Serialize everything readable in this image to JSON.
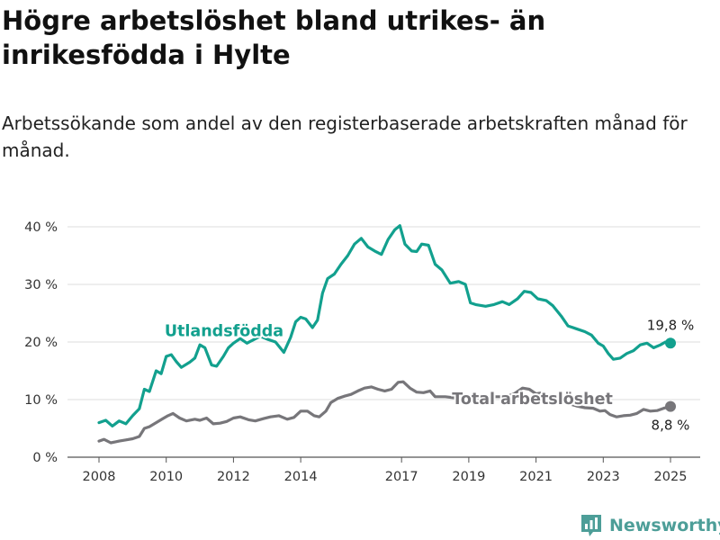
{
  "header": {
    "title": "Högre arbetslöshet bland utrikes- än inrikesfödda i Hylte",
    "subtitle": "Arbetssökande som andel av den registerbaserade arbetskraften månad för månad."
  },
  "brand": {
    "name": "Newsworthy",
    "icon": "newsworthy-chart-icon"
  },
  "colors": {
    "foreign": "#12a08e",
    "total": "#77767a",
    "axis": "#555555",
    "grid": "#dddddd"
  },
  "chart_data": {
    "type": "line",
    "title": "Högre arbetslöshet bland utrikes- än inrikesfödda i Hylte",
    "subtitle": "Arbetssökande som andel av den registerbaserade arbetskraften månad för månad.",
    "xlabel": "",
    "ylabel": "",
    "xlim": [
      2007.75,
      2025.9
    ],
    "ylim": [
      0,
      42
    ],
    "grid": true,
    "legend": "inline labels",
    "y_ticks": [
      {
        "value": 0,
        "label": "0 %"
      },
      {
        "value": 10,
        "label": "10 %"
      },
      {
        "value": 20,
        "label": "20 %"
      },
      {
        "value": 30,
        "label": "30 %"
      },
      {
        "value": 40,
        "label": "40 %"
      }
    ],
    "x_ticks": [
      {
        "value": 2008,
        "label": "2008"
      },
      {
        "value": 2010,
        "label": "2010"
      },
      {
        "value": 2012,
        "label": "2012"
      },
      {
        "value": 2014,
        "label": "2014"
      },
      {
        "value": 2017,
        "label": "2017"
      },
      {
        "value": 2019,
        "label": "2019"
      },
      {
        "value": 2021,
        "label": "2021"
      },
      {
        "value": 2023,
        "label": "2023"
      },
      {
        "value": 2025,
        "label": "2025"
      }
    ],
    "series": [
      {
        "name": "Utlandsfödda",
        "color": "#12a08e",
        "end_label": "19,8 %",
        "label_at": [
          2009.95,
          21
        ],
        "points": [
          [
            2008.0,
            6.0
          ],
          [
            2008.2,
            6.4
          ],
          [
            2008.4,
            5.4
          ],
          [
            2008.6,
            6.3
          ],
          [
            2008.8,
            5.8
          ],
          [
            2009.0,
            7.2
          ],
          [
            2009.2,
            8.4
          ],
          [
            2009.35,
            11.8
          ],
          [
            2009.5,
            11.4
          ],
          [
            2009.7,
            15.0
          ],
          [
            2009.85,
            14.5
          ],
          [
            2010.0,
            17.5
          ],
          [
            2010.15,
            17.8
          ],
          [
            2010.3,
            16.6
          ],
          [
            2010.45,
            15.6
          ],
          [
            2010.7,
            16.5
          ],
          [
            2010.85,
            17.2
          ],
          [
            2011.0,
            19.5
          ],
          [
            2011.15,
            19.0
          ],
          [
            2011.35,
            16.0
          ],
          [
            2011.5,
            15.8
          ],
          [
            2011.7,
            17.5
          ],
          [
            2011.85,
            19.0
          ],
          [
            2012.0,
            19.8
          ],
          [
            2012.2,
            20.6
          ],
          [
            2012.4,
            19.8
          ],
          [
            2012.6,
            20.4
          ],
          [
            2012.8,
            21.0
          ],
          [
            2013.0,
            20.5
          ],
          [
            2013.25,
            20.0
          ],
          [
            2013.5,
            18.2
          ],
          [
            2013.7,
            20.8
          ],
          [
            2013.85,
            23.5
          ],
          [
            2014.0,
            24.3
          ],
          [
            2014.15,
            24.0
          ],
          [
            2014.35,
            22.5
          ],
          [
            2014.5,
            23.8
          ],
          [
            2014.65,
            28.5
          ],
          [
            2014.8,
            31.0
          ],
          [
            2015.0,
            31.8
          ],
          [
            2015.2,
            33.5
          ],
          [
            2015.4,
            35.0
          ],
          [
            2015.6,
            37.0
          ],
          [
            2015.8,
            38.0
          ],
          [
            2016.0,
            36.5
          ],
          [
            2016.2,
            35.8
          ],
          [
            2016.4,
            35.2
          ],
          [
            2016.6,
            37.8
          ],
          [
            2016.8,
            39.5
          ],
          [
            2016.95,
            40.2
          ],
          [
            2017.1,
            37.0
          ],
          [
            2017.3,
            35.8
          ],
          [
            2017.45,
            35.7
          ],
          [
            2017.6,
            37.0
          ],
          [
            2017.8,
            36.8
          ],
          [
            2018.0,
            33.5
          ],
          [
            2018.2,
            32.5
          ],
          [
            2018.45,
            30.2
          ],
          [
            2018.7,
            30.5
          ],
          [
            2018.9,
            30.0
          ],
          [
            2019.05,
            26.8
          ],
          [
            2019.2,
            26.5
          ],
          [
            2019.5,
            26.2
          ],
          [
            2019.75,
            26.5
          ],
          [
            2020.0,
            27.0
          ],
          [
            2020.2,
            26.5
          ],
          [
            2020.45,
            27.5
          ],
          [
            2020.65,
            28.8
          ],
          [
            2020.85,
            28.6
          ],
          [
            2021.05,
            27.5
          ],
          [
            2021.3,
            27.2
          ],
          [
            2021.5,
            26.3
          ],
          [
            2021.75,
            24.5
          ],
          [
            2021.95,
            22.8
          ],
          [
            2022.2,
            22.3
          ],
          [
            2022.45,
            21.8
          ],
          [
            2022.65,
            21.2
          ],
          [
            2022.85,
            19.8
          ],
          [
            2023.0,
            19.3
          ],
          [
            2023.15,
            18.0
          ],
          [
            2023.3,
            17.0
          ],
          [
            2023.5,
            17.2
          ],
          [
            2023.7,
            18.0
          ],
          [
            2023.9,
            18.5
          ],
          [
            2024.1,
            19.5
          ],
          [
            2024.3,
            19.8
          ],
          [
            2024.5,
            19.0
          ],
          [
            2024.7,
            19.5
          ],
          [
            2024.85,
            20.0
          ],
          [
            2025.0,
            19.8
          ]
        ]
      },
      {
        "name": "Total arbetslöshet",
        "color": "#77767a",
        "end_label": "8,8 %",
        "label_at": [
          2018.5,
          9.2
        ],
        "points": [
          [
            2008.0,
            2.8
          ],
          [
            2008.15,
            3.1
          ],
          [
            2008.35,
            2.5
          ],
          [
            2008.6,
            2.8
          ],
          [
            2008.8,
            3.0
          ],
          [
            2009.0,
            3.2
          ],
          [
            2009.2,
            3.6
          ],
          [
            2009.35,
            5.0
          ],
          [
            2009.5,
            5.3
          ],
          [
            2009.7,
            6.0
          ],
          [
            2009.9,
            6.7
          ],
          [
            2010.05,
            7.2
          ],
          [
            2010.2,
            7.6
          ],
          [
            2010.4,
            6.8
          ],
          [
            2010.6,
            6.3
          ],
          [
            2010.85,
            6.6
          ],
          [
            2011.0,
            6.4
          ],
          [
            2011.2,
            6.8
          ],
          [
            2011.4,
            5.8
          ],
          [
            2011.6,
            5.9
          ],
          [
            2011.8,
            6.2
          ],
          [
            2012.0,
            6.8
          ],
          [
            2012.2,
            7.0
          ],
          [
            2012.45,
            6.5
          ],
          [
            2012.65,
            6.3
          ],
          [
            2012.9,
            6.7
          ],
          [
            2013.1,
            7.0
          ],
          [
            2013.35,
            7.2
          ],
          [
            2013.6,
            6.6
          ],
          [
            2013.8,
            6.9
          ],
          [
            2014.0,
            8.0
          ],
          [
            2014.2,
            8.0
          ],
          [
            2014.4,
            7.2
          ],
          [
            2014.55,
            7.0
          ],
          [
            2014.75,
            8.0
          ],
          [
            2014.9,
            9.5
          ],
          [
            2015.1,
            10.2
          ],
          [
            2015.3,
            10.6
          ],
          [
            2015.5,
            10.9
          ],
          [
            2015.7,
            11.5
          ],
          [
            2015.9,
            12.0
          ],
          [
            2016.1,
            12.2
          ],
          [
            2016.3,
            11.8
          ],
          [
            2016.5,
            11.5
          ],
          [
            2016.7,
            11.8
          ],
          [
            2016.9,
            13.0
          ],
          [
            2017.05,
            13.1
          ],
          [
            2017.25,
            12.0
          ],
          [
            2017.45,
            11.3
          ],
          [
            2017.65,
            11.2
          ],
          [
            2017.85,
            11.5
          ],
          [
            2018.0,
            10.5
          ],
          [
            2018.3,
            10.5
          ],
          [
            2018.6,
            10.3
          ],
          [
            2018.9,
            10.8
          ],
          [
            2019.2,
            10.3
          ],
          [
            2019.5,
            10.2
          ],
          [
            2019.8,
            10.5
          ],
          [
            2020.1,
            10.5
          ],
          [
            2020.35,
            11.0
          ],
          [
            2020.6,
            12.0
          ],
          [
            2020.8,
            11.8
          ],
          [
            2021.0,
            11.0
          ],
          [
            2021.2,
            11.2
          ],
          [
            2021.45,
            10.5
          ],
          [
            2021.7,
            10.0
          ],
          [
            2021.9,
            9.4
          ],
          [
            2022.2,
            8.9
          ],
          [
            2022.45,
            8.6
          ],
          [
            2022.7,
            8.5
          ],
          [
            2022.9,
            8.0
          ],
          [
            2023.05,
            8.1
          ],
          [
            2023.2,
            7.4
          ],
          [
            2023.4,
            7.0
          ],
          [
            2023.6,
            7.2
          ],
          [
            2023.8,
            7.3
          ],
          [
            2024.0,
            7.6
          ],
          [
            2024.2,
            8.3
          ],
          [
            2024.4,
            8.0
          ],
          [
            2024.6,
            8.1
          ],
          [
            2024.8,
            8.5
          ],
          [
            2025.0,
            8.8
          ]
        ]
      }
    ]
  }
}
